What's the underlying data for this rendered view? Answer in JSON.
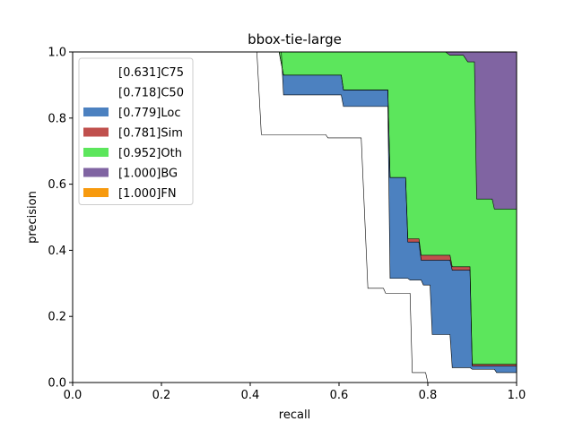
{
  "chart_data": {
    "type": "area",
    "title": "bbox-tie-large",
    "xlabel": "recall",
    "ylabel": "precision",
    "xlim": [
      0.0,
      1.0
    ],
    "ylim": [
      0.0,
      1.0
    ],
    "x_ticks": [
      "0.0",
      "0.2",
      "0.4",
      "0.6",
      "0.8",
      "1.0"
    ],
    "y_ticks": [
      "0.0",
      "0.2",
      "0.4",
      "0.6",
      "0.8",
      "1.0"
    ],
    "grid": false,
    "legend_position": "upper-left",
    "series": [
      {
        "name": "[0.631]C75",
        "color": "#ffffff",
        "points": [
          [
            0.0,
            1.0
          ],
          [
            0.415,
            1.0
          ],
          [
            0.425,
            0.75
          ],
          [
            0.57,
            0.75
          ],
          [
            0.575,
            0.74
          ],
          [
            0.65,
            0.74
          ],
          [
            0.665,
            0.285
          ],
          [
            0.7,
            0.285
          ],
          [
            0.705,
            0.27
          ],
          [
            0.76,
            0.27
          ],
          [
            0.765,
            0.03
          ],
          [
            0.795,
            0.03
          ],
          [
            0.8,
            0.0
          ],
          [
            1.0,
            0.0
          ]
        ]
      },
      {
        "name": "[0.718]C50",
        "color": "#ffffff",
        "points": [
          [
            0.0,
            1.0
          ],
          [
            0.47,
            1.0
          ],
          [
            0.475,
            0.87
          ],
          [
            0.605,
            0.87
          ],
          [
            0.61,
            0.835
          ],
          [
            0.71,
            0.835
          ],
          [
            0.715,
            0.315
          ],
          [
            0.755,
            0.315
          ],
          [
            0.76,
            0.31
          ],
          [
            0.785,
            0.31
          ],
          [
            0.79,
            0.295
          ],
          [
            0.805,
            0.295
          ],
          [
            0.81,
            0.145
          ],
          [
            0.85,
            0.145
          ],
          [
            0.855,
            0.045
          ],
          [
            0.895,
            0.045
          ],
          [
            0.9,
            0.04
          ],
          [
            0.95,
            0.04
          ],
          [
            0.955,
            0.03
          ],
          [
            1.0,
            0.03
          ]
        ]
      },
      {
        "name": "[0.779]Loc",
        "color": "#4c81c0",
        "points": [
          [
            0.0,
            1.0
          ],
          [
            0.465,
            1.0
          ],
          [
            0.475,
            0.93
          ],
          [
            0.605,
            0.93
          ],
          [
            0.61,
            0.885
          ],
          [
            0.71,
            0.885
          ],
          [
            0.715,
            0.62
          ],
          [
            0.75,
            0.62
          ],
          [
            0.755,
            0.425
          ],
          [
            0.78,
            0.425
          ],
          [
            0.785,
            0.37
          ],
          [
            0.85,
            0.37
          ],
          [
            0.855,
            0.34
          ],
          [
            0.895,
            0.34
          ],
          [
            0.9,
            0.05
          ],
          [
            0.95,
            0.05
          ],
          [
            0.955,
            0.05
          ],
          [
            1.0,
            0.05
          ]
        ]
      },
      {
        "name": "[0.781]Sim",
        "color": "#c0504d",
        "points": [
          [
            0.0,
            1.0
          ],
          [
            0.465,
            1.0
          ],
          [
            0.475,
            0.93
          ],
          [
            0.605,
            0.93
          ],
          [
            0.61,
            0.885
          ],
          [
            0.71,
            0.885
          ],
          [
            0.715,
            0.62
          ],
          [
            0.75,
            0.62
          ],
          [
            0.755,
            0.435
          ],
          [
            0.78,
            0.435
          ],
          [
            0.785,
            0.385
          ],
          [
            0.85,
            0.385
          ],
          [
            0.855,
            0.35
          ],
          [
            0.895,
            0.35
          ],
          [
            0.9,
            0.055
          ],
          [
            0.95,
            0.055
          ],
          [
            0.955,
            0.055
          ],
          [
            1.0,
            0.055
          ]
        ]
      },
      {
        "name": "[0.952]Oth",
        "color": "#5ce65c",
        "points": [
          [
            0.0,
            1.0
          ],
          [
            0.84,
            1.0
          ],
          [
            0.85,
            0.99
          ],
          [
            0.88,
            0.99
          ],
          [
            0.89,
            0.97
          ],
          [
            0.905,
            0.97
          ],
          [
            0.91,
            0.555
          ],
          [
            0.945,
            0.555
          ],
          [
            0.95,
            0.525
          ],
          [
            1.0,
            0.525
          ]
        ]
      },
      {
        "name": "[1.000]BG",
        "color": "#8064a2",
        "points": [
          [
            0.0,
            1.0
          ],
          [
            1.0,
            1.0
          ]
        ]
      },
      {
        "name": "[1.000]FN",
        "color": "#f79a0e",
        "points": [
          [
            0.0,
            1.0
          ],
          [
            1.0,
            1.0
          ]
        ]
      }
    ]
  }
}
